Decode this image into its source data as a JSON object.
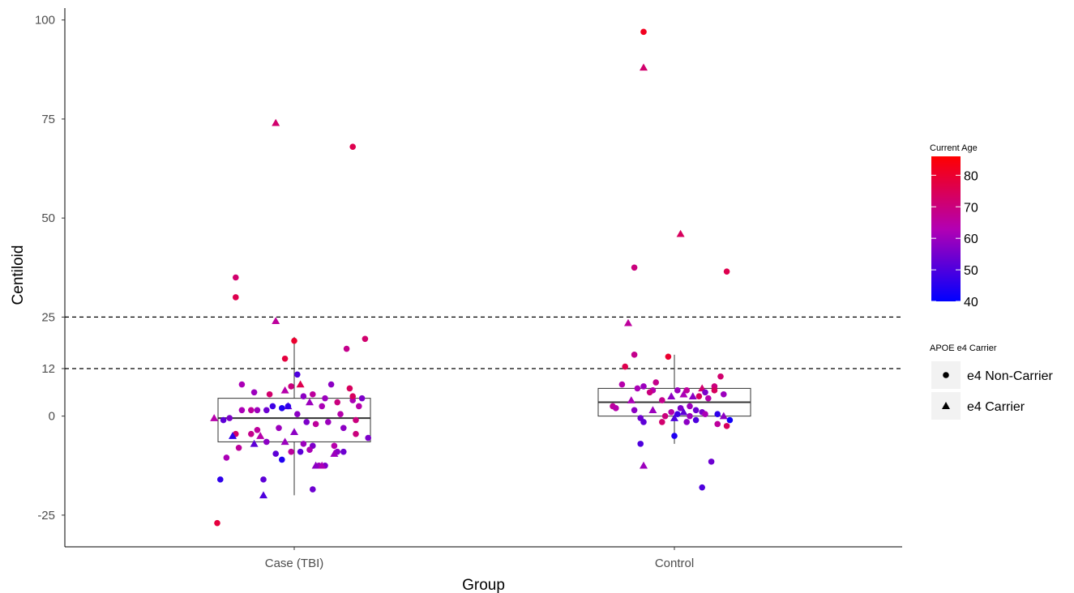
{
  "chart_data": {
    "type": "box-scatter",
    "xlabel": "Group",
    "ylabel": "Centiloid",
    "categories": [
      "Case (TBI)",
      "Control"
    ],
    "y_ticks": [
      -25,
      0,
      12,
      25,
      50,
      75,
      100
    ],
    "y_tick_labels": [
      "-25",
      "0",
      "12",
      "25",
      "50",
      "75",
      "100"
    ],
    "ylim": [
      -33,
      103
    ],
    "reference_lines": [
      25,
      12
    ],
    "grid": false,
    "boxes": [
      {
        "category": "Case (TBI)",
        "whisker_low": -20,
        "q1": -6.5,
        "median": -0.5,
        "q3": 4.5,
        "whisker_high": 20
      },
      {
        "category": "Control",
        "whisker_low": -7,
        "q1": 0,
        "median": 3.5,
        "q3": 7,
        "whisker_high": 15.5
      }
    ],
    "color_legend": {
      "title": "Current Age",
      "min": 40,
      "max": 86,
      "ticks": [
        40,
        50,
        60,
        70,
        80
      ],
      "tick_labels": [
        "40",
        "50",
        "60",
        "70",
        "80"
      ],
      "low_color": "#0000ff",
      "mid_color": "#b300b3",
      "high_color": "#ff0000"
    },
    "shape_legend": {
      "title": "APOE e4 Carrier",
      "entries": [
        {
          "label": "e4 Non-Carrier",
          "shape": "circle"
        },
        {
          "label": "e4 Carrier",
          "shape": "triangle"
        }
      ]
    },
    "points": [
      {
        "g": 0,
        "o": -0.25,
        "y": -27,
        "age": 78,
        "s": "c"
      },
      {
        "g": 0,
        "o": -0.24,
        "y": -16,
        "age": 46,
        "s": "c"
      },
      {
        "g": 0,
        "o": -0.06,
        "y": 74,
        "age": 72,
        "s": "t"
      },
      {
        "g": 0,
        "o": 0.19,
        "y": 68,
        "age": 76,
        "s": "c"
      },
      {
        "g": 0,
        "o": -0.19,
        "y": 35,
        "age": 72,
        "s": "c"
      },
      {
        "g": 0,
        "o": -0.19,
        "y": 30,
        "age": 76,
        "s": "c"
      },
      {
        "g": 0,
        "o": -0.06,
        "y": 24,
        "age": 66,
        "s": "t"
      },
      {
        "g": 0,
        "o": 0.0,
        "y": 19,
        "age": 80,
        "s": "c"
      },
      {
        "g": 0,
        "o": 0.23,
        "y": 19.5,
        "age": 72,
        "s": "c"
      },
      {
        "g": 0,
        "o": -0.03,
        "y": 14.5,
        "age": 78,
        "s": "c"
      },
      {
        "g": 0,
        "o": 0.17,
        "y": 17,
        "age": 68,
        "s": "c"
      },
      {
        "g": 0,
        "o": 0.01,
        "y": 10.5,
        "age": 50,
        "s": "c"
      },
      {
        "g": 0,
        "o": 0.02,
        "y": 8,
        "age": 76,
        "s": "t"
      },
      {
        "g": 0,
        "o": 0.12,
        "y": 8,
        "age": 58,
        "s": "c"
      },
      {
        "g": 0,
        "o": -0.17,
        "y": 8,
        "age": 62,
        "s": "c"
      },
      {
        "g": 0,
        "o": 0.18,
        "y": 7,
        "age": 74,
        "s": "c"
      },
      {
        "g": 0,
        "o": -0.01,
        "y": 7.5,
        "age": 70,
        "s": "c"
      },
      {
        "g": 0,
        "o": -0.03,
        "y": 6.5,
        "age": 64,
        "s": "t"
      },
      {
        "g": 0,
        "o": -0.13,
        "y": 6,
        "age": 60,
        "s": "c"
      },
      {
        "g": 0,
        "o": 0.06,
        "y": 5.5,
        "age": 66,
        "s": "c"
      },
      {
        "g": 0,
        "o": 0.03,
        "y": 5,
        "age": 58,
        "s": "c"
      },
      {
        "g": 0,
        "o": -0.08,
        "y": 5.5,
        "age": 72,
        "s": "c"
      },
      {
        "g": 0,
        "o": 0.1,
        "y": 4.5,
        "age": 60,
        "s": "c"
      },
      {
        "g": 0,
        "o": 0.19,
        "y": 4,
        "age": 62,
        "s": "c"
      },
      {
        "g": 0,
        "o": 0.22,
        "y": 4.5,
        "age": 56,
        "s": "c"
      },
      {
        "g": 0,
        "o": 0.14,
        "y": 3.5,
        "age": 70,
        "s": "c"
      },
      {
        "g": 0,
        "o": 0.05,
        "y": 3.5,
        "age": 60,
        "s": "t"
      },
      {
        "g": 0,
        "o": -0.02,
        "y": 2.5,
        "age": 54,
        "s": "t"
      },
      {
        "g": 0,
        "o": -0.07,
        "y": 2.5,
        "age": 48,
        "s": "c"
      },
      {
        "g": 0,
        "o": -0.04,
        "y": 2,
        "age": 44,
        "s": "c"
      },
      {
        "g": 0,
        "o": -0.02,
        "y": 2.5,
        "age": 46,
        "s": "c"
      },
      {
        "g": 0,
        "o": 0.09,
        "y": 2.5,
        "age": 62,
        "s": "c"
      },
      {
        "g": 0,
        "o": 0.21,
        "y": 2.5,
        "age": 64,
        "s": "c"
      },
      {
        "g": 0,
        "o": -0.09,
        "y": 1.5,
        "age": 54,
        "s": "c"
      },
      {
        "g": 0,
        "o": -0.12,
        "y": 1.5,
        "age": 60,
        "s": "c"
      },
      {
        "g": 0,
        "o": -0.17,
        "y": 1.5,
        "age": 62,
        "s": "c"
      },
      {
        "g": 0,
        "o": -0.14,
        "y": 1.5,
        "age": 66,
        "s": "c"
      },
      {
        "g": 0,
        "o": 0.01,
        "y": 0.5,
        "age": 58,
        "s": "c"
      },
      {
        "g": 0,
        "o": 0.15,
        "y": 0.5,
        "age": 64,
        "s": "c"
      },
      {
        "g": 0,
        "o": 0.2,
        "y": -1,
        "age": 70,
        "s": "c"
      },
      {
        "g": 0,
        "o": -0.21,
        "y": -0.5,
        "age": 56,
        "s": "c"
      },
      {
        "g": 0,
        "o": -0.23,
        "y": -1,
        "age": 52,
        "s": "c"
      },
      {
        "g": 0,
        "o": -0.26,
        "y": -0.5,
        "age": 64,
        "s": "t"
      },
      {
        "g": 0,
        "o": 0.11,
        "y": -1.5,
        "age": 60,
        "s": "c"
      },
      {
        "g": 0,
        "o": 0.04,
        "y": -1.5,
        "age": 56,
        "s": "c"
      },
      {
        "g": 0,
        "o": 0.07,
        "y": -2,
        "age": 66,
        "s": "c"
      },
      {
        "g": 0,
        "o": -0.05,
        "y": -3,
        "age": 60,
        "s": "c"
      },
      {
        "g": 0,
        "o": 0.16,
        "y": -3,
        "age": 58,
        "s": "c"
      },
      {
        "g": 0,
        "o": -0.12,
        "y": -3.5,
        "age": 66,
        "s": "c"
      },
      {
        "g": 0,
        "o": -0.19,
        "y": -4.5,
        "age": 72,
        "s": "c"
      },
      {
        "g": 0,
        "o": -0.14,
        "y": -4.5,
        "age": 68,
        "s": "c"
      },
      {
        "g": 0,
        "o": 0.0,
        "y": -4,
        "age": 58,
        "s": "t"
      },
      {
        "g": 0,
        "o": -0.2,
        "y": -5,
        "age": 46,
        "s": "t"
      },
      {
        "g": 0,
        "o": -0.11,
        "y": -5,
        "age": 64,
        "s": "t"
      },
      {
        "g": 0,
        "o": 0.2,
        "y": -4.5,
        "age": 70,
        "s": "c"
      },
      {
        "g": 0,
        "o": 0.24,
        "y": -5.5,
        "age": 56,
        "s": "c"
      },
      {
        "g": 0,
        "o": -0.09,
        "y": -6.5,
        "age": 58,
        "s": "c"
      },
      {
        "g": 0,
        "o": -0.13,
        "y": -7,
        "age": 52,
        "s": "t"
      },
      {
        "g": 0,
        "o": -0.03,
        "y": -6.5,
        "age": 60,
        "s": "t"
      },
      {
        "g": 0,
        "o": 0.06,
        "y": -7.5,
        "age": 56,
        "s": "c"
      },
      {
        "g": 0,
        "o": 0.03,
        "y": -7,
        "age": 60,
        "s": "c"
      },
      {
        "g": 0,
        "o": 0.13,
        "y": -7.5,
        "age": 64,
        "s": "c"
      },
      {
        "g": 0,
        "o": -0.18,
        "y": -8,
        "age": 66,
        "s": "c"
      },
      {
        "g": 0,
        "o": 0.05,
        "y": -8.5,
        "age": 62,
        "s": "c"
      },
      {
        "g": 0,
        "o": -0.01,
        "y": -9,
        "age": 66,
        "s": "c"
      },
      {
        "g": 0,
        "o": 0.02,
        "y": -9,
        "age": 52,
        "s": "c"
      },
      {
        "g": 0,
        "o": 0.14,
        "y": -9,
        "age": 58,
        "s": "c"
      },
      {
        "g": 0,
        "o": 0.16,
        "y": -9,
        "age": 54,
        "s": "c"
      },
      {
        "g": 0,
        "o": 0.13,
        "y": -9.5,
        "age": 60,
        "s": "t"
      },
      {
        "g": 0,
        "o": -0.06,
        "y": -9.5,
        "age": 52,
        "s": "c"
      },
      {
        "g": 0,
        "o": -0.22,
        "y": -10.5,
        "age": 62,
        "s": "c"
      },
      {
        "g": 0,
        "o": -0.04,
        "y": -11,
        "age": 44,
        "s": "c"
      },
      {
        "g": 0,
        "o": 0.08,
        "y": -12.5,
        "age": 60,
        "s": "c"
      },
      {
        "g": 0,
        "o": 0.1,
        "y": -12.5,
        "age": 56,
        "s": "c"
      },
      {
        "g": 0,
        "o": 0.07,
        "y": -12.5,
        "age": 58,
        "s": "t"
      },
      {
        "g": 0,
        "o": 0.09,
        "y": -12.5,
        "age": 62,
        "s": "t"
      },
      {
        "g": 0,
        "o": -0.1,
        "y": -16,
        "age": 52,
        "s": "c"
      },
      {
        "g": 0,
        "o": -0.1,
        "y": -20,
        "age": 50,
        "s": "t"
      },
      {
        "g": 0,
        "o": 0.06,
        "y": -18.5,
        "age": 54,
        "s": "c"
      },
      {
        "g": 0,
        "o": 0.19,
        "y": 5,
        "age": 74,
        "s": "c"
      },
      {
        "g": 1,
        "o": -0.1,
        "y": 97,
        "age": 82,
        "s": "c"
      },
      {
        "g": 1,
        "o": -0.1,
        "y": 88,
        "age": 72,
        "s": "t"
      },
      {
        "g": 1,
        "o": 0.02,
        "y": 46,
        "age": 74,
        "s": "t"
      },
      {
        "g": 1,
        "o": -0.13,
        "y": 37.5,
        "age": 70,
        "s": "c"
      },
      {
        "g": 1,
        "o": 0.17,
        "y": 36.5,
        "age": 76,
        "s": "c"
      },
      {
        "g": 1,
        "o": -0.15,
        "y": 23.5,
        "age": 66,
        "s": "t"
      },
      {
        "g": 1,
        "o": -0.13,
        "y": 15.5,
        "age": 68,
        "s": "c"
      },
      {
        "g": 1,
        "o": -0.02,
        "y": 15,
        "age": 80,
        "s": "c"
      },
      {
        "g": 1,
        "o": -0.16,
        "y": 12.5,
        "age": 76,
        "s": "c"
      },
      {
        "g": 1,
        "o": 0.15,
        "y": 10,
        "age": 72,
        "s": "c"
      },
      {
        "g": 1,
        "o": -0.06,
        "y": 8.5,
        "age": 68,
        "s": "c"
      },
      {
        "g": 1,
        "o": -0.17,
        "y": 8,
        "age": 64,
        "s": "c"
      },
      {
        "g": 1,
        "o": -0.1,
        "y": 7.5,
        "age": 60,
        "s": "c"
      },
      {
        "g": 1,
        "o": -0.07,
        "y": 6.5,
        "age": 64,
        "s": "c"
      },
      {
        "g": 1,
        "o": -0.12,
        "y": 7,
        "age": 62,
        "s": "c"
      },
      {
        "g": 1,
        "o": 0.13,
        "y": 7.5,
        "age": 70,
        "s": "c"
      },
      {
        "g": 1,
        "o": 0.09,
        "y": 7,
        "age": 72,
        "s": "t"
      },
      {
        "g": 1,
        "o": 0.01,
        "y": 6.5,
        "age": 60,
        "s": "c"
      },
      {
        "g": 1,
        "o": 0.04,
        "y": 6.5,
        "age": 66,
        "s": "c"
      },
      {
        "g": 1,
        "o": -0.08,
        "y": 6,
        "age": 70,
        "s": "c"
      },
      {
        "g": 1,
        "o": 0.03,
        "y": 5.5,
        "age": 62,
        "s": "t"
      },
      {
        "g": 1,
        "o": 0.1,
        "y": 6,
        "age": 56,
        "s": "c"
      },
      {
        "g": 1,
        "o": 0.16,
        "y": 5.5,
        "age": 60,
        "s": "c"
      },
      {
        "g": 1,
        "o": 0.08,
        "y": 5,
        "age": 74,
        "s": "c"
      },
      {
        "g": 1,
        "o": -0.01,
        "y": 5,
        "age": 58,
        "s": "t"
      },
      {
        "g": 1,
        "o": 0.06,
        "y": 5,
        "age": 58,
        "s": "t"
      },
      {
        "g": 1,
        "o": -0.14,
        "y": 4,
        "age": 62,
        "s": "t"
      },
      {
        "g": 1,
        "o": -0.04,
        "y": 4,
        "age": 68,
        "s": "c"
      },
      {
        "g": 1,
        "o": 0.11,
        "y": 4.5,
        "age": 64,
        "s": "c"
      },
      {
        "g": 1,
        "o": -0.2,
        "y": 2.5,
        "age": 66,
        "s": "c"
      },
      {
        "g": 1,
        "o": -0.13,
        "y": 1.5,
        "age": 58,
        "s": "c"
      },
      {
        "g": 1,
        "o": -0.07,
        "y": 1.5,
        "age": 60,
        "s": "t"
      },
      {
        "g": 1,
        "o": -0.03,
        "y": 0,
        "age": 70,
        "s": "c"
      },
      {
        "g": 1,
        "o": -0.01,
        "y": 1,
        "age": 64,
        "s": "c"
      },
      {
        "g": 1,
        "o": 0.02,
        "y": 2,
        "age": 56,
        "s": "c"
      },
      {
        "g": 1,
        "o": 0.05,
        "y": 2.5,
        "age": 60,
        "s": "c"
      },
      {
        "g": 1,
        "o": 0.03,
        "y": 1,
        "age": 52,
        "s": "t"
      },
      {
        "g": 1,
        "o": 0.07,
        "y": 1.5,
        "age": 54,
        "s": "c"
      },
      {
        "g": 1,
        "o": 0.01,
        "y": 0.5,
        "age": 48,
        "s": "c"
      },
      {
        "g": 1,
        "o": 0.09,
        "y": 1,
        "age": 56,
        "s": "c"
      },
      {
        "g": 1,
        "o": 0.05,
        "y": 0,
        "age": 60,
        "s": "c"
      },
      {
        "g": 1,
        "o": 0.0,
        "y": -0.5,
        "age": 50,
        "s": "t"
      },
      {
        "g": 1,
        "o": 0.14,
        "y": 0.5,
        "age": 46,
        "s": "c"
      },
      {
        "g": 1,
        "o": 0.1,
        "y": 0.5,
        "age": 62,
        "s": "c"
      },
      {
        "g": 1,
        "o": -0.11,
        "y": -0.5,
        "age": 54,
        "s": "c"
      },
      {
        "g": 1,
        "o": 0.16,
        "y": 0,
        "age": 58,
        "s": "t"
      },
      {
        "g": 1,
        "o": -0.04,
        "y": -1.5,
        "age": 72,
        "s": "c"
      },
      {
        "g": 1,
        "o": -0.1,
        "y": -1.5,
        "age": 52,
        "s": "c"
      },
      {
        "g": 1,
        "o": 0.04,
        "y": -1.5,
        "age": 58,
        "s": "c"
      },
      {
        "g": 1,
        "o": 0.07,
        "y": -1,
        "age": 50,
        "s": "c"
      },
      {
        "g": 1,
        "o": 0.14,
        "y": -2,
        "age": 66,
        "s": "c"
      },
      {
        "g": 1,
        "o": 0.18,
        "y": -1,
        "age": 42,
        "s": "c"
      },
      {
        "g": 1,
        "o": 0.17,
        "y": -2.5,
        "age": 74,
        "s": "c"
      },
      {
        "g": 1,
        "o": 0.0,
        "y": -5,
        "age": 44,
        "s": "c"
      },
      {
        "g": 1,
        "o": -0.11,
        "y": -7,
        "age": 50,
        "s": "c"
      },
      {
        "g": 1,
        "o": -0.1,
        "y": -12.5,
        "age": 60,
        "s": "t"
      },
      {
        "g": 1,
        "o": 0.12,
        "y": -11.5,
        "age": 54,
        "s": "c"
      },
      {
        "g": 1,
        "o": 0.09,
        "y": -18,
        "age": 50,
        "s": "c"
      },
      {
        "g": 1,
        "o": -0.19,
        "y": 2,
        "age": 64,
        "s": "c"
      },
      {
        "g": 1,
        "o": 0.13,
        "y": 6.5,
        "age": 74,
        "s": "c"
      }
    ]
  }
}
